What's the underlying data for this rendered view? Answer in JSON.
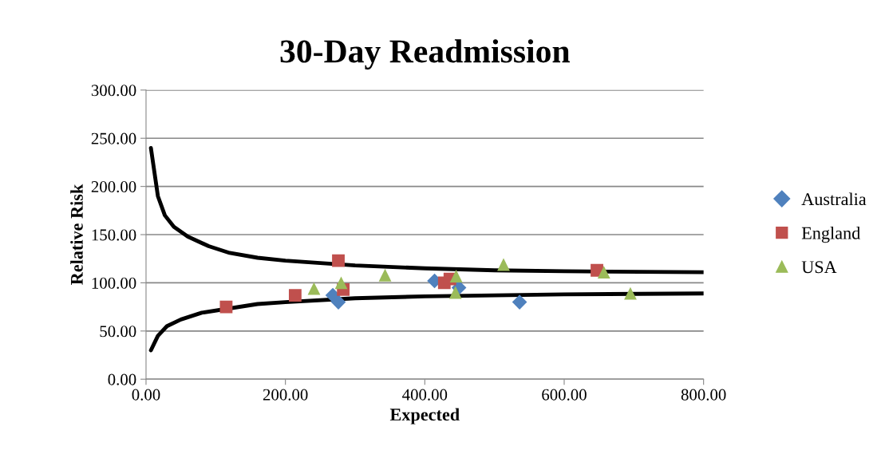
{
  "chart_data": {
    "type": "scatter",
    "title": "30-Day Readmission",
    "xlabel": "Expected",
    "ylabel": "Relative Risk",
    "xlim": [
      0,
      800
    ],
    "ylim": [
      0,
      300
    ],
    "xticks": [
      {
        "value": 0,
        "label": "0.00"
      },
      {
        "value": 200,
        "label": "200.00"
      },
      {
        "value": 400,
        "label": "400.00"
      },
      {
        "value": 600,
        "label": "600.00"
      },
      {
        "value": 800,
        "label": "800.00"
      }
    ],
    "yticks": [
      {
        "value": 0,
        "label": "0.00"
      },
      {
        "value": 50,
        "label": "50.00"
      },
      {
        "value": 100,
        "label": "100.00"
      },
      {
        "value": 150,
        "label": "150.00"
      },
      {
        "value": 200,
        "label": "200.00"
      },
      {
        "value": 250,
        "label": "250.00"
      },
      {
        "value": 300,
        "label": "300.00"
      }
    ],
    "grid": "y",
    "legend": "right",
    "series": [
      {
        "name": "Australia",
        "color": "#4f81bd",
        "marker": "diamond",
        "x": [
          268,
          276,
          414,
          449,
          536
        ],
        "values": [
          87,
          80,
          102,
          95,
          80
        ]
      },
      {
        "name": "England",
        "color": "#c0504d",
        "marker": "square",
        "x": [
          115,
          214,
          276,
          283,
          428,
          436,
          647
        ],
        "values": [
          75,
          87,
          123,
          93,
          100,
          104,
          113
        ]
      },
      {
        "name": "USA",
        "color": "#9bbb59",
        "marker": "triangle",
        "x": [
          241,
          280,
          343,
          445,
          444,
          513,
          657,
          695
        ],
        "values": [
          94,
          100,
          108,
          107,
          90,
          119,
          111,
          89
        ]
      },
      {
        "type": "line",
        "color": "#000000",
        "marker": "none",
        "x": [
          7,
          17,
          27,
          40,
          60,
          90,
          120,
          160,
          200,
          300,
          400,
          500,
          600,
          800
        ],
        "values": [
          240,
          190,
          170,
          158,
          148,
          138,
          131,
          126,
          123,
          118,
          115,
          113,
          112,
          111
        ]
      },
      {
        "type": "line",
        "color": "#000000",
        "marker": "none",
        "x": [
          7,
          17,
          30,
          50,
          80,
          160,
          200,
          300,
          400,
          500,
          600,
          800
        ],
        "values": [
          30,
          45,
          55,
          62,
          69,
          78,
          80,
          84,
          86,
          87,
          88,
          89
        ]
      }
    ]
  }
}
